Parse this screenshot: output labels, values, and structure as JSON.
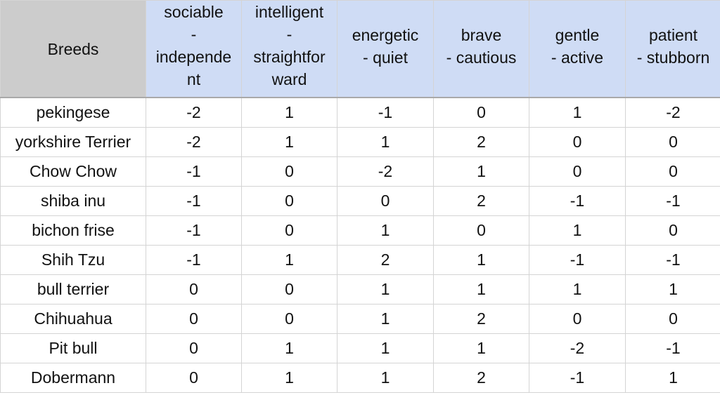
{
  "table": {
    "corner_header": "Breeds",
    "columns": [
      {
        "lines": [
          "sociable",
          "-",
          "independe",
          "nt"
        ]
      },
      {
        "lines": [
          "intelligent",
          "-",
          "straightfor",
          "ward"
        ]
      },
      {
        "lines": [
          "energetic",
          "- quiet"
        ]
      },
      {
        "lines": [
          "brave",
          "- cautious"
        ]
      },
      {
        "lines": [
          "gentle",
          "- active"
        ]
      },
      {
        "lines": [
          "patient",
          "- stubborn"
        ]
      }
    ],
    "rows": [
      {
        "breed": "pekingese",
        "values": [
          "-2",
          "1",
          "-1",
          "0",
          "1",
          "-2"
        ]
      },
      {
        "breed": "yorkshire Terrier",
        "values": [
          "-2",
          "1",
          "1",
          "2",
          "0",
          "0"
        ]
      },
      {
        "breed": "Chow Chow",
        "values": [
          "-1",
          "0",
          "-2",
          "1",
          "0",
          "0"
        ]
      },
      {
        "breed": "shiba inu",
        "values": [
          "-1",
          "0",
          "0",
          "2",
          "-1",
          "-1"
        ]
      },
      {
        "breed": "bichon frise",
        "values": [
          "-1",
          "0",
          "1",
          "0",
          "1",
          "0"
        ]
      },
      {
        "breed": "Shih Tzu",
        "values": [
          "-1",
          "1",
          "2",
          "1",
          "-1",
          "-1"
        ]
      },
      {
        "breed": "bull terrier",
        "values": [
          "0",
          "0",
          "1",
          "1",
          "1",
          "1"
        ]
      },
      {
        "breed": "Chihuahua",
        "values": [
          "0",
          "0",
          "1",
          "2",
          "0",
          "0"
        ]
      },
      {
        "breed": "Pit bull",
        "values": [
          "0",
          "1",
          "1",
          "1",
          "-2",
          "-1"
        ]
      },
      {
        "breed": "Dobermann",
        "values": [
          "0",
          "1",
          "1",
          "2",
          "-1",
          "1"
        ]
      }
    ]
  },
  "colors": {
    "header_bg": "#cfdcf5",
    "corner_bg": "#cccccc",
    "grid_line": "#d4d4d4"
  }
}
